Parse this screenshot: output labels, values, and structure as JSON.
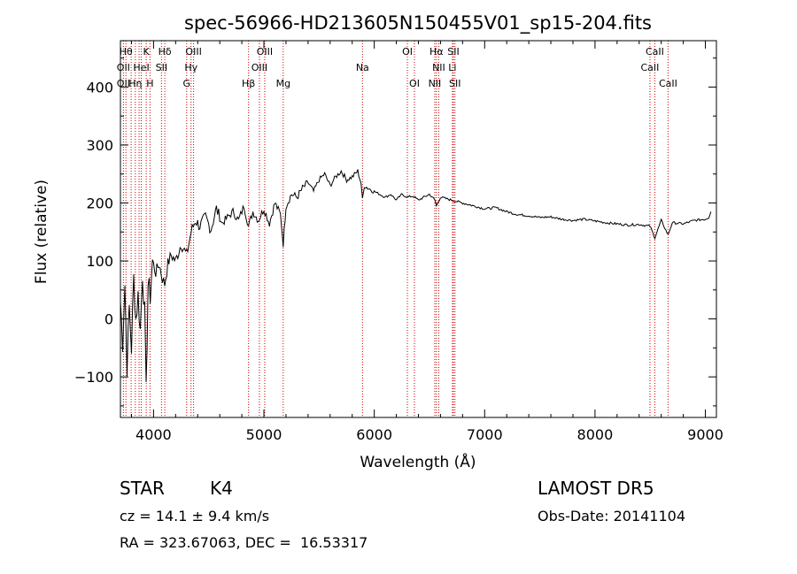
{
  "chart_data": {
    "type": "line",
    "title": "spec-56966-HD213605N150455V01_sp15-204.fits",
    "xlabel": "Wavelength (Å)",
    "ylabel": "Flux (relative)",
    "xlim": [
      3700,
      9100
    ],
    "ylim": [
      -170,
      480
    ],
    "xticks": [
      4000,
      5000,
      6000,
      7000,
      8000,
      9000
    ],
    "yticks": [
      -100,
      0,
      100,
      200,
      300,
      400
    ],
    "ytick_labels": [
      "−100",
      "0",
      "100",
      "200",
      "300",
      "400"
    ],
    "grid": false,
    "series": [
      {
        "x": [
          3700,
          3720,
          3740,
          3760,
          3780,
          3800,
          3820,
          3840,
          3860,
          3880,
          3900,
          3920,
          3933,
          3950,
          3970,
          3990,
          4020,
          4050,
          4080,
          4101,
          4130,
          4160,
          4200,
          4250,
          4300,
          4340,
          4380,
          4420,
          4470,
          4520,
          4570,
          4620,
          4670,
          4720,
          4770,
          4820,
          4861,
          4900,
          4950,
          5000,
          5050,
          5100,
          5150,
          5175,
          5200,
          5250,
          5300,
          5350,
          5400,
          5450,
          5500,
          5550,
          5600,
          5650,
          5700,
          5750,
          5800,
          5850,
          5880,
          5893,
          5910,
          5950,
          6000,
          6050,
          6100,
          6150,
          6200,
          6250,
          6300,
          6350,
          6400,
          6450,
          6500,
          6550,
          6563,
          6600,
          6700,
          6800,
          6900,
          7000,
          7100,
          7200,
          7300,
          7400,
          7500,
          7600,
          7700,
          7800,
          7900,
          8000,
          8100,
          8200,
          8300,
          8400,
          8498,
          8542,
          8600,
          8662,
          8700,
          8800,
          8900,
          9000,
          9030,
          9050
        ],
        "y": [
          30,
          -40,
          60,
          -80,
          20,
          -50,
          70,
          0,
          40,
          -20,
          80,
          10,
          -130,
          60,
          40,
          100,
          80,
          95,
          70,
          60,
          95,
          110,
          100,
          130,
          110,
          150,
          170,
          160,
          175,
          155,
          190,
          165,
          175,
          185,
          170,
          195,
          160,
          185,
          170,
          190,
          165,
          200,
          180,
          130,
          195,
          215,
          210,
          225,
          235,
          220,
          240,
          250,
          230,
          245,
          255,
          240,
          245,
          255,
          235,
          205,
          230,
          225,
          220,
          215,
          210,
          215,
          205,
          215,
          210,
          212,
          205,
          210,
          215,
          205,
          195,
          210,
          205,
          200,
          195,
          190,
          192,
          185,
          180,
          178,
          175,
          176,
          172,
          170,
          172,
          169,
          166,
          164,
          162,
          163,
          160,
          140,
          170,
          145,
          166,
          164,
          170,
          172,
          175,
          185
        ]
      }
    ],
    "line_labels": [
      {
        "x": 3750,
        "top": [
          "Hθ",
          "OII",
          "OII"
        ]
      },
      {
        "x": 3797,
        "top": [
          "",
          "",
          ""
        ]
      },
      {
        "x": 3835,
        "top": [
          "",
          "",
          ""
        ]
      },
      {
        "x": 3869,
        "top": [
          "",
          "",
          ""
        ]
      },
      {
        "x": 3889,
        "top": [
          "",
          "",
          ""
        ]
      },
      {
        "x": 3934,
        "top": [
          "K",
          "",
          ""
        ]
      },
      {
        "x": 3968,
        "top": [
          "",
          "",
          ""
        ]
      },
      {
        "x": 4026,
        "top": [
          "",
          "",
          ""
        ]
      },
      {
        "x": 4102,
        "top": [
          "Hδ",
          "",
          ""
        ]
      },
      {
        "x": 4300,
        "top": [
          "",
          "",
          ""
        ]
      },
      {
        "x": 4340,
        "top": [
          "",
          "",
          ""
        ]
      },
      {
        "x": 4861,
        "top": [
          "",
          "",
          ""
        ]
      },
      {
        "x": 4959,
        "top": [
          "",
          "",
          ""
        ]
      },
      {
        "x": 5007,
        "top": [
          "",
          "",
          ""
        ]
      },
      {
        "x": 5175,
        "top": [
          "",
          "",
          ""
        ]
      },
      {
        "x": 5893,
        "top": [
          "",
          "",
          ""
        ]
      },
      {
        "x": 6300,
        "top": [
          "",
          "",
          ""
        ]
      },
      {
        "x": 6364,
        "top": [
          "",
          "",
          ""
        ]
      },
      {
        "x": 6548,
        "top": [
          "",
          "",
          ""
        ]
      },
      {
        "x": 6563,
        "top": [
          "",
          "",
          ""
        ]
      },
      {
        "x": 6584,
        "top": [
          "",
          "",
          ""
        ]
      },
      {
        "x": 6708,
        "top": [
          "",
          "",
          ""
        ]
      },
      {
        "x": 6717,
        "top": [
          "",
          "",
          ""
        ]
      },
      {
        "x": 6731,
        "top": [
          "",
          "",
          ""
        ]
      },
      {
        "x": 8498,
        "top": [
          "",
          "",
          ""
        ]
      },
      {
        "x": 8542,
        "top": [
          "",
          "",
          ""
        ]
      },
      {
        "x": 8662,
        "top": [
          "",
          "",
          ""
        ]
      }
    ],
    "annotations": [
      {
        "text": "Hθ",
        "x": 3750,
        "row": 0
      },
      {
        "text": "K",
        "x": 3934,
        "row": 0
      },
      {
        "text": "Hδ",
        "x": 4102,
        "row": 0
      },
      {
        "text": "OIII",
        "x": 4363,
        "row": 0
      },
      {
        "text": "OIII",
        "x": 5007,
        "row": 0
      },
      {
        "text": "OI",
        "x": 6300,
        "row": 0
      },
      {
        "text": "Hα",
        "x": 6563,
        "row": 0
      },
      {
        "text": "SII",
        "x": 6717,
        "row": 0
      },
      {
        "text": "CaII",
        "x": 8542,
        "row": 0
      },
      {
        "text": "OII",
        "x": 3727,
        "row": 1
      },
      {
        "text": "HeI",
        "x": 3889,
        "row": 1
      },
      {
        "text": "SII",
        "x": 4072,
        "row": 1
      },
      {
        "text": "Hγ",
        "x": 4340,
        "row": 1
      },
      {
        "text": "OIII",
        "x": 4959,
        "row": 1
      },
      {
        "text": "Na",
        "x": 5893,
        "row": 1
      },
      {
        "text": "NII",
        "x": 6584,
        "row": 1
      },
      {
        "text": "Li",
        "x": 6708,
        "row": 1
      },
      {
        "text": "CaII",
        "x": 8498,
        "row": 1
      },
      {
        "text": "OII",
        "x": 3727,
        "row": 2
      },
      {
        "text": "Hη",
        "x": 3835,
        "row": 2
      },
      {
        "text": "H",
        "x": 3968,
        "row": 2
      },
      {
        "text": "G",
        "x": 4300,
        "row": 2
      },
      {
        "text": "Hβ",
        "x": 4861,
        "row": 2
      },
      {
        "text": "Mg",
        "x": 5175,
        "row": 2
      },
      {
        "text": "OI",
        "x": 6364,
        "row": 2
      },
      {
        "text": "NII",
        "x": 6548,
        "row": 2
      },
      {
        "text": "SII",
        "x": 6731,
        "row": 2
      },
      {
        "text": "CaII",
        "x": 8662,
        "row": 2
      }
    ],
    "line_markers": [
      3727,
      3750,
      3797,
      3835,
      3869,
      3889,
      3934,
      3968,
      4072,
      4102,
      4300,
      4340,
      4363,
      4861,
      4959,
      5007,
      5175,
      5893,
      6300,
      6364,
      6548,
      6563,
      6584,
      6708,
      6717,
      6731,
      8498,
      8542,
      8662
    ]
  },
  "colors": {
    "spectrum": "#000000",
    "line_markers": "#cc0000",
    "axes": "#000000"
  },
  "info": {
    "object_class": "STAR",
    "subclass": "K4",
    "survey": "LAMOST DR5",
    "redshift": "cz = 14.1 ± 9.4 km/s",
    "obs_date": "Obs-Date: 20141104",
    "coords": "RA = 323.67063, DEC =  16.53317"
  }
}
